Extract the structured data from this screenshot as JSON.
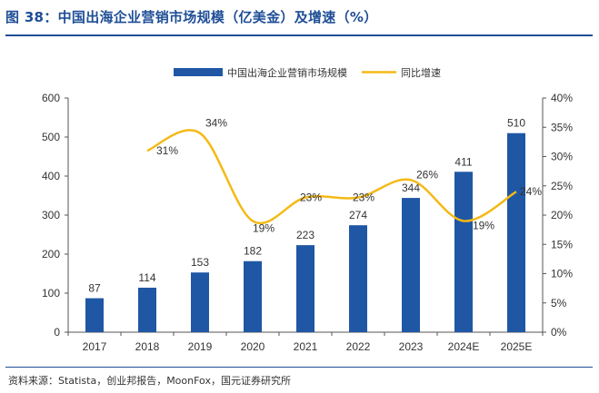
{
  "title": "图 38：中国出海企业营销市场规模（亿美金）及增速（%）",
  "source": "资料来源：Statista，创业邦报告，MoonFox，国元证券研究所",
  "colors": {
    "bar": "#1f57a4",
    "line": "#f5b916",
    "title": "#1f4e96"
  },
  "chart_data": {
    "type": "bar",
    "categories": [
      "2017",
      "2018",
      "2019",
      "2020",
      "2021",
      "2022",
      "2023",
      "2024E",
      "2025E"
    ],
    "series": [
      {
        "name": "中国出海企业营销市场规模",
        "type": "bar",
        "axis": "left",
        "values": [
          87,
          114,
          153,
          182,
          223,
          274,
          344,
          411,
          510
        ],
        "labels": [
          "87",
          "114",
          "153",
          "182",
          "223",
          "274",
          "344",
          "411",
          "510"
        ]
      },
      {
        "name": "同比增速",
        "type": "line",
        "axis": "right",
        "values": [
          null,
          31,
          34,
          19,
          23,
          23,
          26,
          19,
          24
        ],
        "labels": [
          "",
          "31%",
          "34%",
          "19%",
          "23%",
          "23%",
          "26%",
          "19%",
          "24%"
        ]
      }
    ],
    "y_left": {
      "min": 0,
      "max": 600,
      "ticks": [
        "0",
        "100",
        "200",
        "300",
        "400",
        "500",
        "600"
      ]
    },
    "y_right": {
      "min": 0,
      "max": 40,
      "ticks": [
        "0%",
        "5%",
        "10%",
        "15%",
        "20%",
        "25%",
        "30%",
        "35%",
        "40%"
      ]
    },
    "legend_position": "top",
    "grid": false
  }
}
